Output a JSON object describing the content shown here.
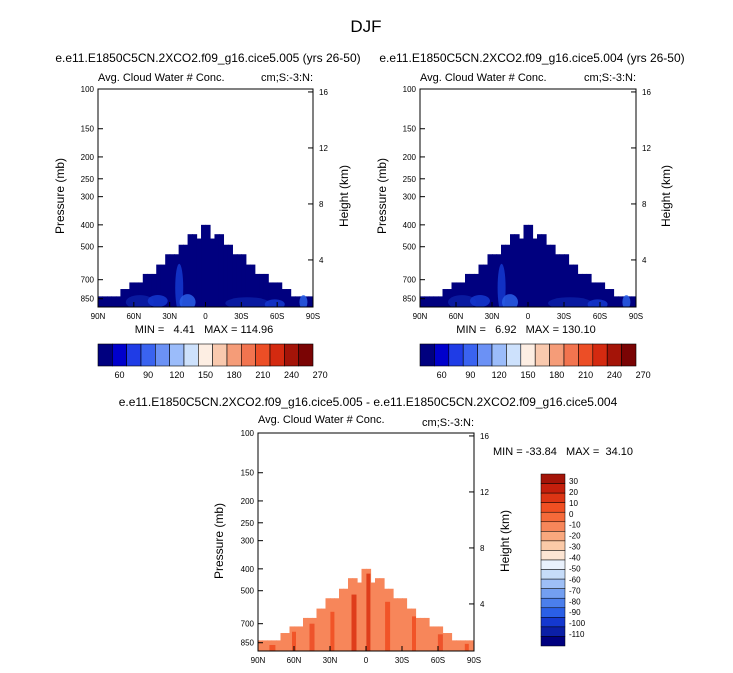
{
  "figure_title": "DJF",
  "chart_data": [
    {
      "type": "heatmap",
      "title": "e.e11.E1850C5CN.2XCO2.f09_g16.cice5.005 (yrs 26-50)",
      "left_string": "Avg. Cloud Water # Conc.",
      "right_string": "cm;S:-3:N:",
      "ylabel": "Pressure (mb)",
      "ylabel_right": "Height (km)",
      "x_ticks": [
        "90N",
        "60N",
        "30N",
        "0",
        "30S",
        "60S",
        "90S"
      ],
      "x_range": [
        90,
        -90
      ],
      "p_ticks": [
        "100",
        "150",
        "200",
        "250",
        "300",
        "400",
        "500",
        "700",
        "850"
      ],
      "p_range": [
        100,
        925
      ],
      "height_ticks": [
        "16",
        "12",
        "8",
        "4"
      ],
      "stats_text": "MIN =   4.41   MAX = 114.96",
      "min": 4.41,
      "max": 114.96,
      "colorbar_labels": [
        "60",
        "90",
        "120",
        "150",
        "180",
        "210",
        "240",
        "270"
      ],
      "colorbar_colors": [
        "#00007f",
        "#0000cc",
        "#1f3ce6",
        "#3a63f0",
        "#6b91f5",
        "#9bbcfa",
        "#cde1fc",
        "#fdeee3",
        "#f9c9ae",
        "#f59c78",
        "#f2744f",
        "#ec4e26",
        "#d42a10",
        "#a41408",
        "#7a0404"
      ]
    },
    {
      "type": "heatmap",
      "title": "e.e11.E1850C5CN.2XCO2.f09_g16.cice5.004 (yrs 26-50)",
      "left_string": "Avg. Cloud Water # Conc.",
      "right_string": "cm;S:-3:N:",
      "ylabel": "Pressure (mb)",
      "ylabel_right": "Height (km)",
      "x_ticks": [
        "90N",
        "60N",
        "30N",
        "0",
        "30S",
        "60S",
        "90S"
      ],
      "x_range": [
        90,
        -90
      ],
      "p_ticks": [
        "100",
        "150",
        "200",
        "250",
        "300",
        "400",
        "500",
        "700",
        "850"
      ],
      "p_range": [
        100,
        925
      ],
      "height_ticks": [
        "16",
        "12",
        "8",
        "4"
      ],
      "stats_text": "MIN =   6.92   MAX = 130.10",
      "min": 6.92,
      "max": 130.1,
      "colorbar_labels": [
        "60",
        "90",
        "120",
        "150",
        "180",
        "210",
        "240",
        "270"
      ],
      "colorbar_colors": [
        "#00007f",
        "#0000cc",
        "#1f3ce6",
        "#3a63f0",
        "#6b91f5",
        "#9bbcfa",
        "#cde1fc",
        "#fdeee3",
        "#f9c9ae",
        "#f59c78",
        "#f2744f",
        "#ec4e26",
        "#d42a10",
        "#a41408",
        "#7a0404"
      ]
    },
    {
      "type": "heatmap",
      "title": "e.e11.E1850C5CN.2XCO2.f09_g16.cice5.005 - e.e11.E1850C5CN.2XCO2.f09_g16.cice5.004",
      "left_string": "Avg. Cloud Water # Conc.",
      "right_string": "cm;S:-3:N:",
      "ylabel": "Pressure (mb)",
      "ylabel_right": "Height (km)",
      "x_ticks": [
        "90N",
        "60N",
        "30N",
        "0",
        "30S",
        "60S",
        "90S"
      ],
      "x_range": [
        90,
        -90
      ],
      "p_ticks": [
        "100",
        "150",
        "200",
        "250",
        "300",
        "400",
        "500",
        "700",
        "850"
      ],
      "p_range": [
        100,
        925
      ],
      "height_ticks": [
        "16",
        "12",
        "8",
        "4"
      ],
      "stats_text": "MIN = -33.84   MAX =  34.10",
      "min": -33.84,
      "max": 34.1,
      "colorbar_labels": [
        "30",
        "20",
        "10",
        "0",
        "-10",
        "-20",
        "-30",
        "-40",
        "-50",
        "-60",
        "-70",
        "-80",
        "-90",
        "-100",
        "-110"
      ],
      "colorbar_colors": [
        "#a41408",
        "#c41f0c",
        "#dc3514",
        "#ef4f22",
        "#f56a3a",
        "#f7865a",
        "#f9a87e",
        "#fbcaa8",
        "#fde6d4",
        "#e9f1fc",
        "#c6dcf9",
        "#9ebff6",
        "#739ff1",
        "#4b7fec",
        "#2a5fe6",
        "#1438cf",
        "#0b1fa6",
        "#00007f"
      ]
    }
  ]
}
